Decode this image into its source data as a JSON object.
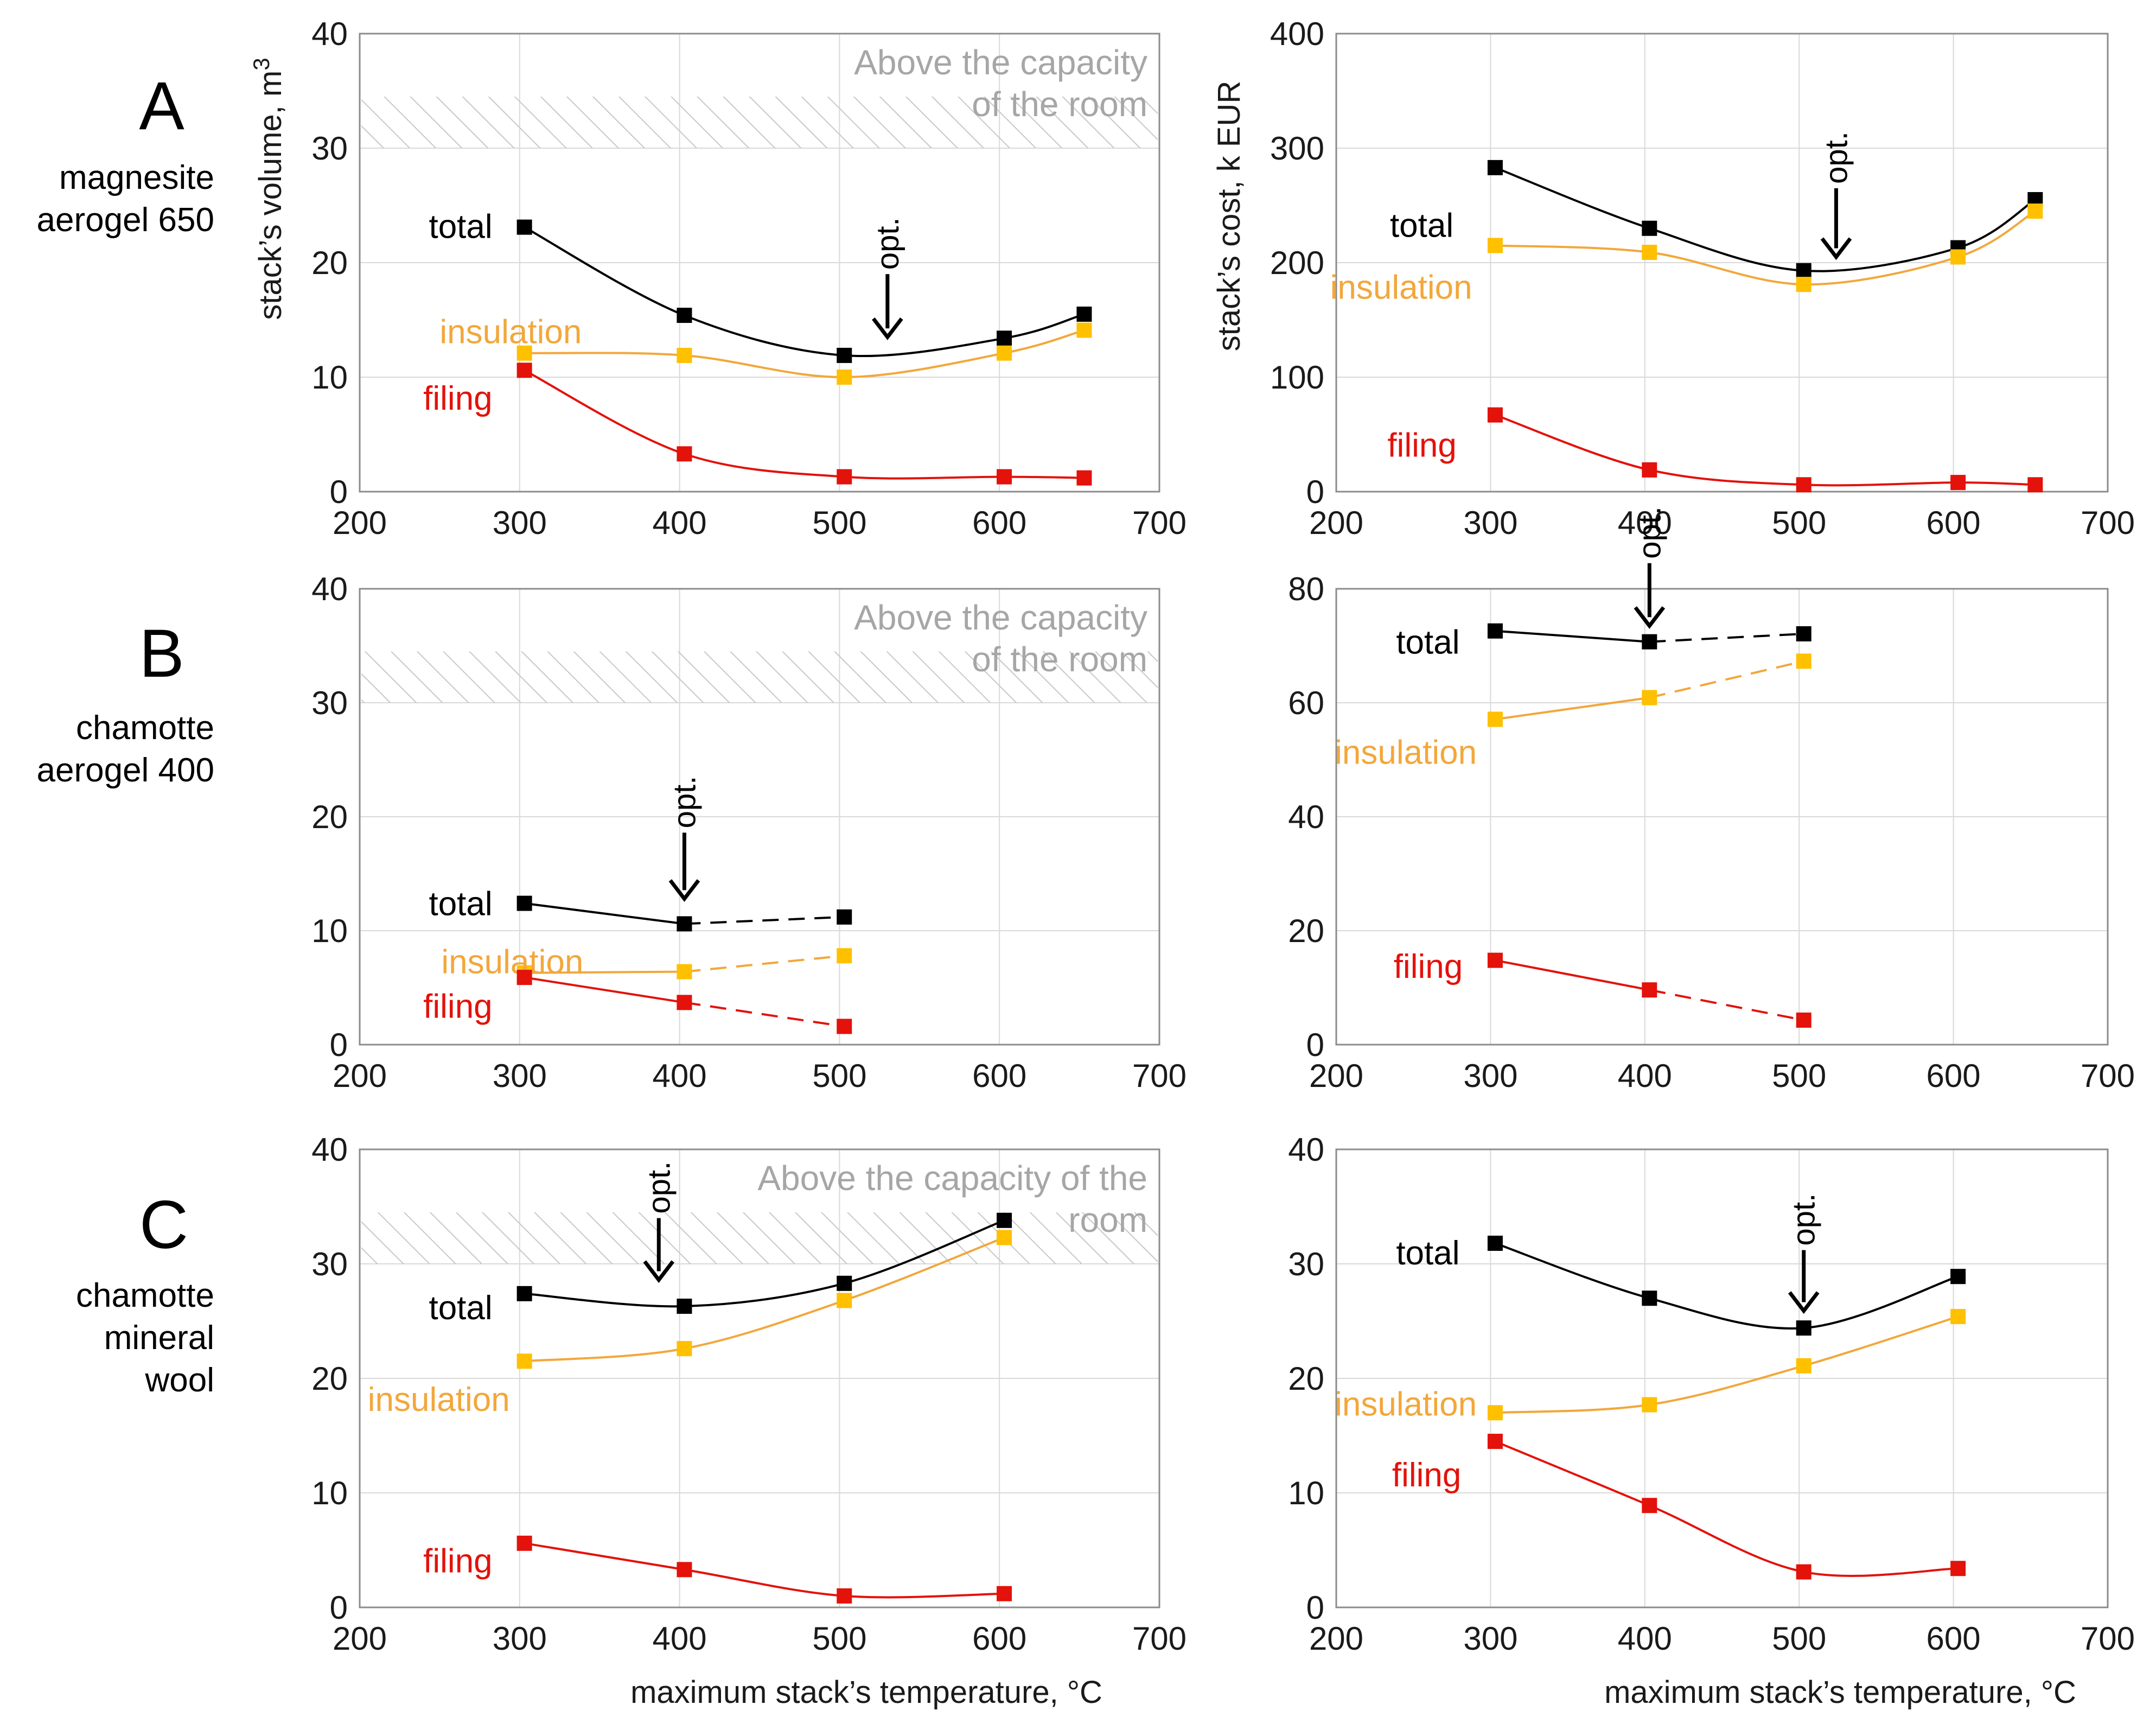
{
  "colors": {
    "total": "#000000",
    "insulation_line": "#f2a73b",
    "insulation_marker": "#ffc000",
    "filing": "#e3120b",
    "capacity_text": "#a6a6a6",
    "hatch": "#cccccc"
  },
  "rows": [
    {
      "letter": "A",
      "label_lines": [
        "magnesite",
        "aerogel 650"
      ]
    },
    {
      "letter": "B",
      "label_lines": [
        "chamotte",
        "aerogel 400"
      ]
    },
    {
      "letter": "C",
      "label_lines": [
        "chamotte",
        "mineral",
        "wool"
      ]
    }
  ],
  "axis_titles": {
    "volume_y": "stack’s volume, m",
    "volume_y_sup": "3",
    "cost_y": "stack’s cost, k EUR",
    "x": "maximum stack’s temperature, °C"
  },
  "capacity_labels": {
    "two_line": [
      "Above the capacity",
      "of the room"
    ],
    "two_line_c": [
      "Above the capacity of the",
      "room"
    ]
  },
  "opt_label": "opt.",
  "series_labels": {
    "total": "total",
    "insulation": "insulation",
    "filing": "filing"
  },
  "chart_data": [
    {
      "id": "A-volume",
      "type": "line",
      "row": "A",
      "title": "",
      "xlabel": "",
      "ylabel": "stack’s volume, m3",
      "xlim": [
        200,
        700
      ],
      "ylim": [
        0,
        40
      ],
      "xticks": [
        200,
        300,
        400,
        500,
        600,
        700
      ],
      "yticks": [
        0,
        10,
        20,
        30,
        40
      ],
      "capacity_threshold": 30,
      "capacity_lines": [
        "Above the capacity",
        "of the room"
      ],
      "opt": {
        "x": 530,
        "y_tip": 13.5,
        "y_tail": 19
      },
      "series": [
        {
          "name": "total",
          "x": [
            303,
            403,
            503,
            603,
            653
          ],
          "values": [
            23.1,
            15.4,
            11.9,
            13.4,
            15.5
          ],
          "solid_until": 4
        },
        {
          "name": "insulation",
          "x": [
            303,
            403,
            503,
            603,
            653
          ],
          "values": [
            12.1,
            11.9,
            10.0,
            12.1,
            14.1
          ],
          "solid_until": 4
        },
        {
          "name": "filing",
          "x": [
            303,
            403,
            503,
            603,
            653
          ],
          "values": [
            10.6,
            3.3,
            1.3,
            1.3,
            1.2
          ],
          "solid_until": 4
        }
      ],
      "labels": {
        "total": {
          "x": 283,
          "y": 23.2,
          "anchor": "end"
        },
        "insulation": {
          "x": 250,
          "y": 14.0,
          "anchor": "start"
        },
        "filing": {
          "x": 283,
          "y": 8.2,
          "anchor": "end"
        }
      }
    },
    {
      "id": "A-cost",
      "type": "line",
      "row": "A",
      "title": "",
      "xlabel": "",
      "ylabel": "stack’s cost, k EUR",
      "xlim": [
        200,
        700
      ],
      "ylim": [
        0,
        400
      ],
      "xticks": [
        200,
        300,
        400,
        500,
        600,
        700
      ],
      "yticks": [
        0,
        100,
        200,
        300,
        400
      ],
      "opt": {
        "x": 524,
        "y_tip": 205,
        "y_tail": 265
      },
      "series": [
        {
          "name": "total",
          "x": [
            303,
            403,
            503,
            603,
            653
          ],
          "values": [
            283,
            230,
            193,
            213,
            255
          ],
          "solid_until": 4
        },
        {
          "name": "insulation",
          "x": [
            303,
            403,
            503,
            603,
            653
          ],
          "values": [
            215,
            209,
            181,
            205,
            245
          ],
          "solid_until": 4
        },
        {
          "name": "filing",
          "x": [
            303,
            403,
            503,
            603,
            653
          ],
          "values": [
            67,
            19,
            6,
            8,
            6
          ],
          "solid_until": 4
        }
      ],
      "labels": {
        "total": {
          "x": 276,
          "y": 233,
          "anchor": "end"
        },
        "insulation": {
          "x": 196,
          "y": 179,
          "anchor": "start"
        },
        "filing": {
          "x": 278,
          "y": 41,
          "anchor": "end"
        }
      }
    },
    {
      "id": "B-volume",
      "type": "line",
      "row": "B",
      "title": "",
      "xlabel": "",
      "ylabel": "",
      "xlim": [
        200,
        700
      ],
      "ylim": [
        0,
        40
      ],
      "xticks": [
        200,
        300,
        400,
        500,
        600,
        700
      ],
      "yticks": [
        0,
        10,
        20,
        30,
        40
      ],
      "capacity_threshold": 30,
      "capacity_lines": [
        "Above the capacity",
        "of the room"
      ],
      "opt": {
        "x": 403,
        "y_tip": 12.8,
        "y_tail": 18.6
      },
      "series": [
        {
          "name": "total",
          "x": [
            303,
            403,
            503
          ],
          "values": [
            12.4,
            10.6,
            11.2
          ],
          "solid_until": 1
        },
        {
          "name": "insulation",
          "x": [
            303,
            403,
            503
          ],
          "values": [
            6.3,
            6.4,
            7.8
          ],
          "solid_until": 1
        },
        {
          "name": "filing",
          "x": [
            303,
            403,
            503
          ],
          "values": [
            5.9,
            3.7,
            1.6
          ],
          "solid_until": 1
        }
      ],
      "labels": {
        "total": {
          "x": 283,
          "y": 12.4,
          "anchor": "end"
        },
        "insulation": {
          "x": 251,
          "y": 7.3,
          "anchor": "start"
        },
        "filing": {
          "x": 283,
          "y": 3.4,
          "anchor": "end"
        }
      }
    },
    {
      "id": "B-cost",
      "type": "line",
      "row": "B",
      "title": "",
      "xlabel": "",
      "ylabel": "",
      "xlim": [
        200,
        700
      ],
      "ylim": [
        0,
        80
      ],
      "xticks": [
        200,
        300,
        400,
        500,
        600,
        700
      ],
      "yticks": [
        0,
        20,
        40,
        60,
        80
      ],
      "opt": {
        "x": 403,
        "y_tip": 73.5,
        "y_tail": 84.5
      },
      "series": [
        {
          "name": "total",
          "x": [
            303,
            403,
            503
          ],
          "values": [
            72.6,
            70.7,
            72.1
          ],
          "solid_until": 1
        },
        {
          "name": "insulation",
          "x": [
            303,
            403,
            503
          ],
          "values": [
            57.1,
            60.9,
            67.3
          ],
          "solid_until": 1
        },
        {
          "name": "filing",
          "x": [
            303,
            403,
            503
          ],
          "values": [
            14.8,
            9.6,
            4.3
          ],
          "solid_until": 1
        }
      ],
      "labels": {
        "total": {
          "x": 280,
          "y": 70.7,
          "anchor": "end"
        },
        "insulation": {
          "x": 199,
          "y": 51.4,
          "anchor": "start"
        },
        "filing": {
          "x": 282,
          "y": 13.8,
          "anchor": "end"
        }
      }
    },
    {
      "id": "C-volume",
      "type": "line",
      "row": "C",
      "title": "",
      "xlabel": "maximum stack’s temperature, °C",
      "ylabel": "",
      "xlim": [
        200,
        700
      ],
      "ylim": [
        0,
        40
      ],
      "xticks": [
        200,
        300,
        400,
        500,
        600,
        700
      ],
      "yticks": [
        0,
        10,
        20,
        30,
        40
      ],
      "capacity_threshold": 30,
      "capacity_lines": [
        "Above the capacity of the",
        "room"
      ],
      "opt": {
        "x": 387,
        "y_tip": 28.6,
        "y_tail": 34.0
      },
      "series": [
        {
          "name": "total",
          "x": [
            303,
            403,
            503,
            603
          ],
          "values": [
            27.4,
            26.3,
            28.3,
            33.8
          ],
          "solid_until": 3
        },
        {
          "name": "insulation",
          "x": [
            303,
            403,
            503,
            603
          ],
          "values": [
            21.5,
            22.6,
            26.8,
            32.3
          ],
          "solid_until": 3
        },
        {
          "name": "filing",
          "x": [
            303,
            403,
            503,
            603
          ],
          "values": [
            5.6,
            3.3,
            1.0,
            1.2
          ],
          "solid_until": 3
        }
      ],
      "labels": {
        "total": {
          "x": 283,
          "y": 26.2,
          "anchor": "end"
        },
        "insulation": {
          "x": 205,
          "y": 18.2,
          "anchor": "start"
        },
        "filing": {
          "x": 283,
          "y": 4.1,
          "anchor": "end"
        }
      }
    },
    {
      "id": "C-cost",
      "type": "line",
      "row": "C",
      "title": "",
      "xlabel": "maximum stack’s temperature, °C",
      "ylabel": "",
      "xlim": [
        200,
        700
      ],
      "ylim": [
        0,
        40
      ],
      "xticks": [
        200,
        300,
        400,
        500,
        600,
        700
      ],
      "yticks": [
        0,
        10,
        20,
        30,
        40
      ],
      "opt": {
        "x": 503,
        "y_tip": 25.9,
        "y_tail": 31.2
      },
      "series": [
        {
          "name": "total",
          "x": [
            303,
            403,
            503,
            603
          ],
          "values": [
            31.8,
            27.0,
            24.4,
            28.9
          ],
          "solid_until": 3
        },
        {
          "name": "insulation",
          "x": [
            303,
            403,
            503,
            603
          ],
          "values": [
            17.0,
            17.7,
            21.1,
            25.4
          ],
          "solid_until": 3
        },
        {
          "name": "filing",
          "x": [
            303,
            403,
            503,
            603
          ],
          "values": [
            14.5,
            8.9,
            3.1,
            3.4
          ],
          "solid_until": 3
        }
      ],
      "labels": {
        "total": {
          "x": 280,
          "y": 31.0,
          "anchor": "end"
        },
        "insulation": {
          "x": 199,
          "y": 17.8,
          "anchor": "start"
        },
        "filing": {
          "x": 281,
          "y": 11.6,
          "anchor": "end"
        }
      }
    }
  ]
}
